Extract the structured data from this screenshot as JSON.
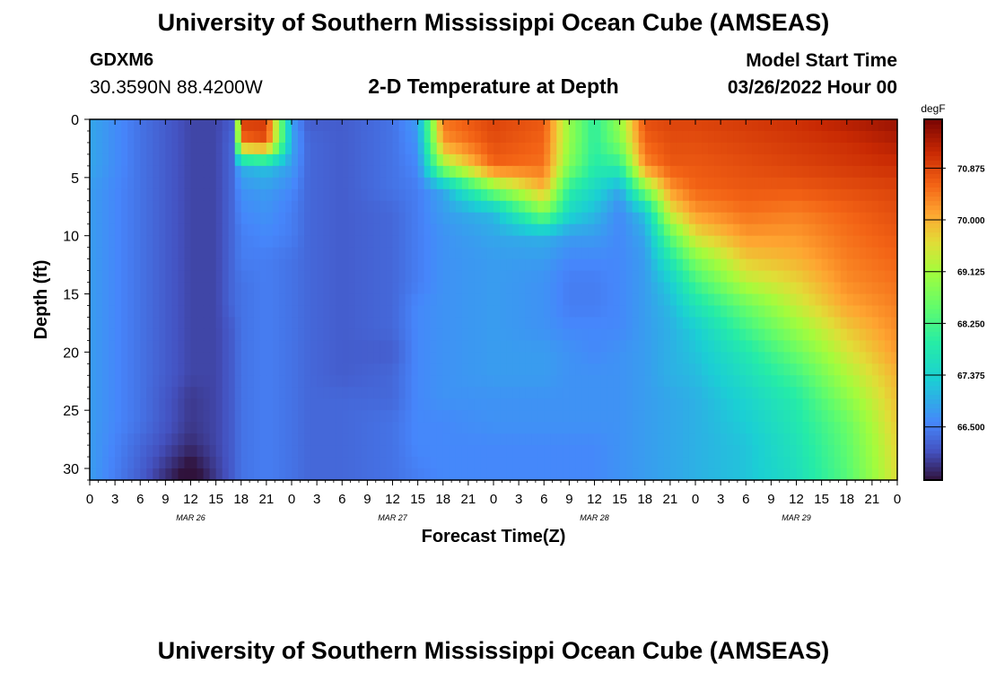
{
  "header": {
    "title": "University of Southern Mississippi Ocean Cube (AMSEAS)",
    "station": "GDXM6",
    "coordinates": "30.3590N  88.4200W",
    "subtitle": "2-D Temperature at Depth",
    "start_label": "Model Start Time",
    "start_value": "03/26/2022 Hour 00"
  },
  "footer": {
    "title": "University of Southern Mississippi Ocean Cube (AMSEAS)"
  },
  "chart_data": {
    "type": "heatmap",
    "title": "2-D Temperature at Depth",
    "xlabel": "Forecast Time(Z)",
    "ylabel": "Depth (ft)",
    "xlim": [
      0,
      96
    ],
    "ylim": [
      0,
      31
    ],
    "y_inverted": true,
    "x_tick_labels": [
      "0",
      "3",
      "6",
      "9",
      "12",
      "15",
      "18",
      "21",
      "0",
      "3",
      "6",
      "9",
      "12",
      "15",
      "18",
      "21",
      "0",
      "3",
      "6",
      "9",
      "12",
      "15",
      "18",
      "21",
      "0",
      "3",
      "6",
      "9",
      "12",
      "15",
      "18",
      "21",
      "0"
    ],
    "x_tick_hours": [
      0,
      3,
      6,
      9,
      12,
      15,
      18,
      21,
      24,
      27,
      30,
      33,
      36,
      39,
      42,
      45,
      48,
      51,
      54,
      57,
      60,
      63,
      66,
      69,
      72,
      75,
      78,
      81,
      84,
      87,
      90,
      93,
      96
    ],
    "date_labels": [
      {
        "label": "MAR 26",
        "hour": 12
      },
      {
        "label": "MAR 27",
        "hour": 36
      },
      {
        "label": "MAR 28",
        "hour": 60
      },
      {
        "label": "MAR 29",
        "hour": 84
      }
    ],
    "y_ticks": [
      0,
      5,
      10,
      15,
      20,
      25,
      30
    ],
    "colorbar": {
      "unit": "degF",
      "min": 65.6,
      "max": 71.7,
      "tick_values": [
        66.5,
        67.375,
        68.25,
        69.125,
        70.0,
        70.875
      ],
      "tick_labels": [
        "66.500",
        "67.375",
        "68.250",
        "69.125",
        "70.000",
        "70.875"
      ]
    },
    "depths_ft": [
      0,
      2,
      4,
      6,
      8,
      10,
      12,
      14,
      16,
      18,
      20,
      22,
      24,
      26,
      28,
      31
    ],
    "hours": [
      0,
      6,
      12,
      15,
      17,
      18,
      21,
      24,
      26,
      30,
      36,
      39,
      42,
      48,
      54,
      57,
      60,
      63,
      66,
      69,
      72,
      78,
      84,
      90,
      96
    ],
    "values": [
      [
        66.9,
        66.4,
        66.0,
        66.0,
        66.2,
        71.0,
        71.0,
        66.8,
        66.2,
        66.2,
        66.4,
        66.8,
        70.5,
        70.9,
        70.7,
        69.0,
        68.0,
        69.0,
        70.8,
        70.9,
        70.9,
        71.0,
        71.1,
        71.3,
        71.5
      ],
      [
        66.9,
        66.4,
        66.0,
        66.0,
        66.3,
        70.5,
        70.8,
        66.9,
        66.3,
        66.2,
        66.4,
        66.7,
        70.2,
        70.8,
        70.6,
        69.0,
        68.0,
        68.8,
        70.6,
        70.8,
        70.8,
        70.9,
        71.0,
        71.1,
        71.3
      ],
      [
        66.9,
        66.4,
        66.0,
        66.0,
        66.3,
        67.0,
        67.2,
        66.8,
        66.3,
        66.2,
        66.4,
        66.6,
        69.0,
        70.6,
        70.5,
        68.8,
        67.9,
        68.0,
        70.3,
        70.7,
        70.7,
        70.8,
        70.9,
        71.0,
        71.1
      ],
      [
        66.8,
        66.4,
        66.0,
        66.0,
        66.3,
        66.7,
        66.8,
        66.6,
        66.3,
        66.2,
        66.4,
        66.5,
        66.9,
        68.8,
        70.0,
        68.0,
        67.5,
        66.9,
        68.8,
        70.2,
        70.6,
        70.7,
        70.7,
        70.8,
        70.9
      ],
      [
        66.8,
        66.4,
        66.0,
        66.0,
        66.3,
        66.6,
        66.7,
        66.5,
        66.3,
        66.2,
        66.3,
        66.5,
        66.8,
        67.1,
        68.8,
        67.5,
        67.1,
        66.6,
        67.2,
        69.5,
        70.2,
        70.5,
        70.4,
        70.6,
        70.8
      ],
      [
        66.8,
        66.4,
        66.0,
        66.0,
        66.3,
        66.5,
        66.6,
        66.5,
        66.3,
        66.2,
        66.3,
        66.5,
        66.7,
        66.9,
        67.0,
        66.8,
        66.8,
        66.6,
        66.9,
        68.5,
        69.6,
        70.2,
        70.2,
        70.5,
        70.7
      ],
      [
        66.8,
        66.4,
        66.0,
        66.0,
        66.3,
        66.5,
        66.5,
        66.4,
        66.3,
        66.2,
        66.3,
        66.5,
        66.7,
        66.8,
        66.8,
        66.6,
        66.6,
        66.6,
        66.8,
        67.8,
        68.8,
        69.8,
        70.0,
        70.4,
        70.6
      ],
      [
        66.8,
        66.4,
        66.0,
        66.0,
        66.3,
        66.4,
        66.5,
        66.4,
        66.3,
        66.2,
        66.3,
        66.5,
        66.7,
        66.8,
        66.7,
        66.5,
        66.5,
        66.6,
        66.8,
        67.3,
        68.2,
        69.3,
        69.7,
        70.3,
        70.5
      ],
      [
        66.8,
        66.4,
        66.0,
        66.0,
        66.3,
        66.4,
        66.5,
        66.4,
        66.3,
        66.2,
        66.3,
        66.6,
        66.7,
        66.8,
        66.7,
        66.5,
        66.5,
        66.6,
        66.8,
        67.1,
        67.7,
        68.6,
        69.4,
        70.1,
        70.4
      ],
      [
        66.8,
        66.4,
        66.0,
        66.0,
        66.2,
        66.4,
        66.5,
        66.4,
        66.3,
        66.2,
        66.3,
        66.6,
        66.7,
        66.8,
        66.7,
        66.6,
        66.6,
        66.6,
        66.8,
        67.0,
        67.3,
        68.2,
        69.0,
        69.8,
        70.3
      ],
      [
        66.8,
        66.4,
        66.0,
        66.0,
        66.2,
        66.4,
        66.5,
        66.4,
        66.3,
        66.2,
        66.2,
        66.6,
        66.7,
        66.8,
        66.8,
        66.7,
        66.6,
        66.7,
        66.8,
        67.0,
        67.2,
        67.8,
        68.6,
        69.5,
        70.2
      ],
      [
        66.8,
        66.4,
        66.0,
        66.0,
        66.2,
        66.4,
        66.5,
        66.4,
        66.3,
        66.2,
        66.3,
        66.6,
        66.7,
        66.8,
        66.8,
        66.7,
        66.7,
        66.7,
        66.8,
        67.0,
        67.1,
        67.6,
        68.2,
        69.2,
        70.0
      ],
      [
        66.8,
        66.4,
        65.9,
        66.0,
        66.2,
        66.4,
        66.5,
        66.4,
        66.3,
        66.3,
        66.3,
        66.6,
        66.7,
        66.7,
        66.7,
        66.7,
        66.7,
        66.7,
        66.8,
        66.9,
        67.0,
        67.4,
        67.9,
        68.9,
        69.9
      ],
      [
        66.8,
        66.4,
        65.9,
        66.0,
        66.2,
        66.4,
        66.5,
        66.4,
        66.3,
        66.3,
        66.4,
        66.6,
        66.6,
        66.7,
        66.7,
        66.7,
        66.7,
        66.7,
        66.8,
        66.9,
        67.0,
        67.3,
        67.8,
        68.6,
        69.8
      ],
      [
        66.8,
        66.3,
        65.8,
        66.0,
        66.2,
        66.4,
        66.5,
        66.4,
        66.3,
        66.3,
        66.4,
        66.6,
        66.6,
        66.6,
        66.6,
        66.6,
        66.6,
        66.7,
        66.8,
        66.9,
        67.0,
        67.2,
        67.7,
        68.5,
        69.7
      ],
      [
        66.8,
        66.2,
        65.4,
        65.9,
        66.2,
        66.4,
        66.5,
        66.4,
        66.3,
        66.3,
        66.4,
        66.5,
        66.6,
        66.6,
        66.6,
        66.6,
        66.6,
        66.7,
        66.8,
        66.9,
        67.0,
        67.2,
        67.6,
        68.4,
        69.6
      ]
    ]
  }
}
